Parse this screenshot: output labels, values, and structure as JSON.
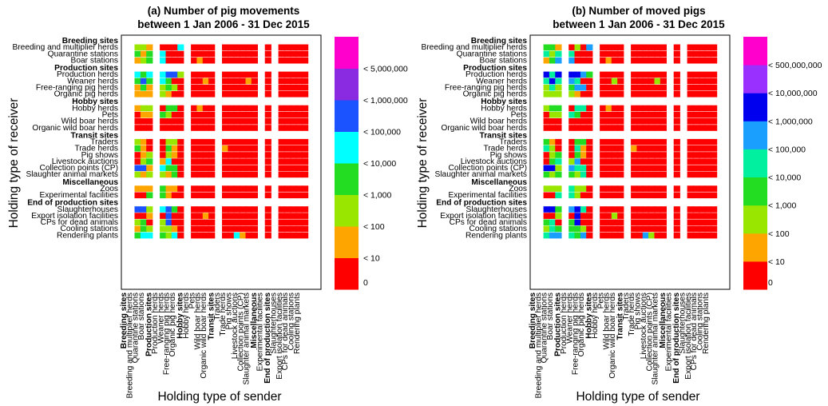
{
  "chart_data": [
    {
      "type": "heatmap",
      "title_line1": "(a) Number of pig movements",
      "title_line2": "between 1 Jan 2006 - 31 Dec 2015",
      "xlabel": "Holding type of sender",
      "ylabel": "Holding type of receiver",
      "legend": {
        "colors": [
          "#ff0000",
          "#ffa500",
          "#99e600",
          "#22dd22",
          "#00ffff",
          "#1a53ff",
          "#8a2be2",
          "#ff00cc"
        ],
        "labels": [
          "0",
          "< 10",
          "< 100",
          "< 1,000",
          "< 10,000",
          "< 100,000",
          "< 1,000,000",
          "< 5,000,000"
        ]
      },
      "matrix": [
        "221000400000000000000000",
        "313400000000000000000000",
        "123400001000000000000000",
        "",
        "434455200000000000000000",
        "353430000100000100000000",
        "131232000000000000000000",
        "111210000000000000000000",
        "",
        "122033001000000000000000",
        "011320000000000000000000",
        "000000000000000000000000",
        "000000000000000000000000",
        "",
        "210022000000000000000000",
        "310031000001000000000000",
        "012021000000000000000000",
        "023140000000000000000000",
        "551433000000000000000000",
        "212213000000000000000000",
        "",
        "111311000000000000000000",
        "003310000000000000000000",
        "",
        "552453000000000000000000",
        "001050000100000000000000",
        "230250000000000000000000",
        "132221000000000000000000",
        "344324000000041000000000"
      ]
    },
    {
      "type": "heatmap",
      "title_line1": "(b) Number of moved pigs",
      "title_line2": "between 1 Jan 2006 - 31 Dec 2015",
      "xlabel": "Holding type of sender",
      "ylabel": "Holding type of receiver",
      "legend": {
        "colors": [
          "#ff0000",
          "#ffa500",
          "#99e600",
          "#22dd22",
          "#00f0a0",
          "#1a9fff",
          "#0000ee",
          "#9a30ff",
          "#ff00cc"
        ],
        "labels": [
          "0",
          "< 10",
          "< 100",
          "< 1,000",
          "< 10,000",
          "< 100,000",
          "< 1,000,000",
          "< 10,000,000",
          "< 500,000,000"
        ]
      },
      "matrix": [
        "331020500000000000000000",
        "424400000000000000000000",
        "135500001000000000000000",
        "",
        "646665300000000000000000",
        "464540000200000200000000",
        "242355000000000000000000",
        "222210000000000000000000",
        "",
        "233044001000000000000000",
        "022430000000000000000000",
        "000000000000000000000000",
        "000000000000000000000000",
        "",
        "310033000000000000000000",
        "420041000001000000000000",
        "023031000000000000000000",
        "034250000000000000000000",
        "662544000000000000000000",
        "323324000000000000000000",
        "",
        "222422000000000000000000",
        "004420000000000000000000",
        "",
        "663564000000000000000000",
        "002060000200000000000000",
        "340360000000000000000000",
        "243332000000000000000000",
        "455435000000052000000000"
      ]
    }
  ],
  "row_labels": [
    {
      "text": "Breeding sites",
      "group": true
    },
    {
      "text": "Breeding and multiplier herds"
    },
    {
      "text": "Quarantine stations"
    },
    {
      "text": "Boar stations"
    },
    {
      "text": "Production sites",
      "group": true
    },
    {
      "text": "Production herds"
    },
    {
      "text": "Weaner herds"
    },
    {
      "text": "Free-ranging pig herds"
    },
    {
      "text": "Organic pig herds"
    },
    {
      "text": "Hobby sites",
      "group": true
    },
    {
      "text": "Hobby herds"
    },
    {
      "text": "Pets"
    },
    {
      "text": "Wild boar herds"
    },
    {
      "text": "Organic wild boar herds"
    },
    {
      "text": "Transit sites",
      "group": true
    },
    {
      "text": "Traders"
    },
    {
      "text": "Trade herds"
    },
    {
      "text": "Pig shows"
    },
    {
      "text": "Livestock auctions"
    },
    {
      "text": "Collection points (CP)"
    },
    {
      "text": "Slaughter animal markets"
    },
    {
      "text": "Miscellaneous",
      "group": true
    },
    {
      "text": "Zoos"
    },
    {
      "text": "Experimental facilities"
    },
    {
      "text": "End of production sites",
      "group": true
    },
    {
      "text": "Slaughterhouses"
    },
    {
      "text": "Export isolation facilities"
    },
    {
      "text": "CPs for dead animals"
    },
    {
      "text": "Cooling stations"
    },
    {
      "text": "Rendering plants"
    }
  ],
  "col_labels": [
    {
      "text": "Breeding sites",
      "group": true
    },
    {
      "text": "Breeding and multiplier herds"
    },
    {
      "text": "Quarantine stations"
    },
    {
      "text": "Boar stations"
    },
    {
      "text": "Production sites",
      "group": true
    },
    {
      "text": "Production herds"
    },
    {
      "text": "Weaner herds"
    },
    {
      "text": "Free-ranging pig herds"
    },
    {
      "text": "Organic pig herds"
    },
    {
      "text": "Hobby sites",
      "group": true
    },
    {
      "text": "Hobby herds"
    },
    {
      "text": "Pets"
    },
    {
      "text": "Wild boar herds"
    },
    {
      "text": "Organic wild boar herds"
    },
    {
      "text": "Transit sites",
      "group": true
    },
    {
      "text": "Traders"
    },
    {
      "text": "Trade herds"
    },
    {
      "text": "Pig shows"
    },
    {
      "text": "Livestock auctions"
    },
    {
      "text": "Collection points (CP)"
    },
    {
      "text": "Slaughter animal markets"
    },
    {
      "text": "Miscellaneous",
      "group": true
    },
    {
      "text": "Experimental facilities"
    },
    {
      "text": "End of production sites",
      "group": true
    },
    {
      "text": "Slaughterhouses"
    },
    {
      "text": "Export isolation facilities"
    },
    {
      "text": "CPs for dead animals"
    },
    {
      "text": "Cooling stations"
    },
    {
      "text": "Rendering plants"
    }
  ]
}
